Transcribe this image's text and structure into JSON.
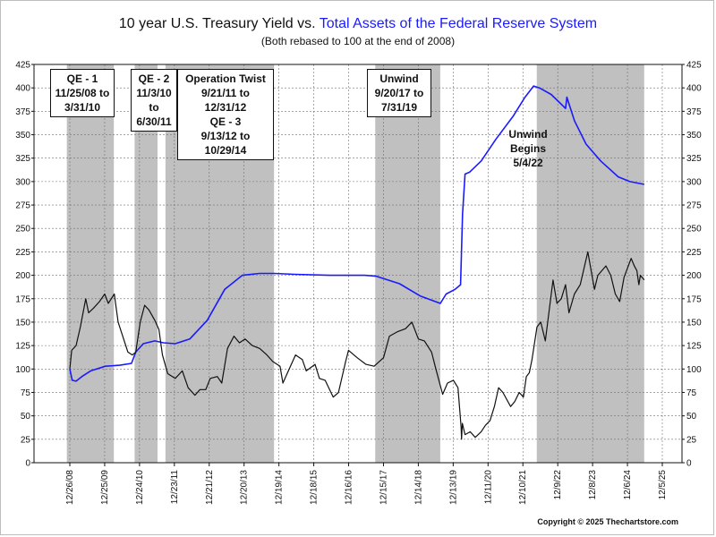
{
  "chart": {
    "title_part1": "10 year U.S. Treasury Yield vs. ",
    "title_part2": "Total Assets of the Federal Reserve System",
    "subtitle": "(Both rebased to 100 at the end of 2008)",
    "copyright": "Copyright © 2025 Thechartstore.com"
  },
  "annotations": {
    "qe1": [
      "QE - 1",
      "11/25/08 to",
      "3/31/10"
    ],
    "qe2": [
      "QE - 2",
      "11/3/10 to",
      "6/30/11"
    ],
    "twist": [
      "Operation Twist",
      "9/21/11 to",
      "12/31/12",
      "QE - 3",
      "9/13/12 to",
      "10/29/14"
    ],
    "unwind1": [
      "Unwind",
      "9/20/17 to",
      "7/31/19"
    ],
    "unwind2": [
      "Unwind",
      "Begins",
      "5/4/22"
    ]
  },
  "chart_data": {
    "type": "line",
    "x_tick_labels": [
      "12/26/08",
      "12/25/09",
      "12/24/10",
      "12/23/11",
      "12/21/12",
      "12/20/13",
      "12/19/14",
      "12/18/15",
      "12/16/16",
      "12/15/17",
      "12/14/18",
      "12/13/19",
      "12/11/20",
      "12/10/21",
      "12/9/22",
      "12/8/23",
      "12/6/24",
      "12/5/25"
    ],
    "y_ticks": [
      0,
      25,
      50,
      75,
      100,
      125,
      150,
      175,
      200,
      225,
      250,
      275,
      300,
      325,
      350,
      375,
      400,
      425
    ],
    "ylim": [
      0,
      425
    ],
    "xlim": [
      "2008-12-26",
      "2025-12-05"
    ],
    "grid": true,
    "shaded_periods": [
      [
        "2008-11-25",
        "2010-03-31"
      ],
      [
        "2010-11-03",
        "2011-06-30"
      ],
      [
        "2011-09-21",
        "2014-10-29"
      ],
      [
        "2017-09-20",
        "2019-07-31"
      ],
      [
        "2022-05-04",
        "2025-05-30"
      ]
    ],
    "colors": {
      "treasury": "#111111",
      "fed_assets": "#1a1aff",
      "shade": "#c0c0c0"
    },
    "series": [
      {
        "name": "Total Assets of the Federal Reserve System",
        "x": [
          "2008-12-26",
          "2009-01-20",
          "2009-03-01",
          "2009-05-01",
          "2009-08-01",
          "2010-01-01",
          "2010-06-01",
          "2010-10-01",
          "2010-11-15",
          "2011-02-01",
          "2011-06-01",
          "2011-09-01",
          "2012-01-01",
          "2012-06-01",
          "2012-12-01",
          "2013-06-01",
          "2013-12-01",
          "2014-06-01",
          "2014-10-29",
          "2015-06-01",
          "2016-06-01",
          "2017-06-01",
          "2017-10-01",
          "2018-06-01",
          "2019-01-01",
          "2019-08-01",
          "2019-10-01",
          "2020-01-01",
          "2020-02-28",
          "2020-03-20",
          "2020-04-15",
          "2020-06-01",
          "2020-10-01",
          "2021-03-01",
          "2021-09-01",
          "2022-01-01",
          "2022-04-01",
          "2022-06-01",
          "2022-10-01",
          "2023-01-20",
          "2023-03-01",
          "2023-03-15",
          "2023-06-01",
          "2023-10-01",
          "2024-03-01",
          "2024-09-01",
          "2025-01-01",
          "2025-05-30"
        ],
        "values": [
          100,
          88,
          87,
          92,
          98,
          103,
          104,
          106,
          118,
          127,
          130,
          128,
          127,
          132,
          152,
          185,
          200,
          202,
          202,
          201,
          200,
          200,
          199,
          191,
          178,
          170,
          180,
          185,
          190,
          265,
          308,
          310,
          322,
          345,
          370,
          390,
          402,
          400,
          393,
          382,
          378,
          390,
          365,
          340,
          322,
          305,
          300,
          297
        ]
      },
      {
        "name": "10 year U.S. Treasury Yield",
        "x": [
          "2008-12-26",
          "2009-01-15",
          "2009-03-01",
          "2009-04-15",
          "2009-06-10",
          "2009-07-10",
          "2009-09-01",
          "2009-11-01",
          "2009-12-26",
          "2010-02-01",
          "2010-04-05",
          "2010-05-15",
          "2010-07-01",
          "2010-08-25",
          "2010-10-10",
          "2010-11-15",
          "2011-01-01",
          "2011-02-15",
          "2011-04-01",
          "2011-06-01",
          "2011-07-15",
          "2011-08-20",
          "2011-10-15",
          "2012-01-01",
          "2012-03-15",
          "2012-05-15",
          "2012-07-25",
          "2012-09-15",
          "2012-11-15",
          "2013-01-01",
          "2013-03-15",
          "2013-05-01",
          "2013-06-30",
          "2013-09-05",
          "2013-11-01",
          "2013-12-31",
          "2014-03-15",
          "2014-06-01",
          "2014-08-15",
          "2014-10-15",
          "2014-12-31",
          "2015-01-30",
          "2015-03-15",
          "2015-06-10",
          "2015-08-20",
          "2015-10-01",
          "2015-12-31",
          "2016-02-15",
          "2016-04-15",
          "2016-07-08",
          "2016-09-01",
          "2016-11-15",
          "2016-12-15",
          "2017-03-15",
          "2017-06-15",
          "2017-09-08",
          "2017-12-15",
          "2018-02-15",
          "2018-05-15",
          "2018-08-01",
          "2018-10-08",
          "2018-12-15",
          "2019-02-15",
          "2019-05-01",
          "2019-06-15",
          "2019-08-25",
          "2019-10-15",
          "2019-12-15",
          "2020-02-01",
          "2020-03-05",
          "2020-03-09",
          "2020-03-18",
          "2020-04-15",
          "2020-06-08",
          "2020-07-30",
          "2020-09-30",
          "2020-11-15",
          "2021-01-01",
          "2021-02-15",
          "2021-03-31",
          "2021-05-15",
          "2021-08-04",
          "2021-09-15",
          "2021-11-01",
          "2021-12-15",
          "2022-01-15",
          "2022-02-15",
          "2022-03-15",
          "2022-05-06",
          "2022-06-15",
          "2022-08-01",
          "2022-10-21",
          "2022-12-01",
          "2023-01-15",
          "2023-03-01",
          "2023-04-05",
          "2023-06-01",
          "2023-08-01",
          "2023-10-19",
          "2023-12-27",
          "2024-02-01",
          "2024-04-25",
          "2024-06-15",
          "2024-08-01",
          "2024-09-16",
          "2024-11-01",
          "2025-01-14",
          "2025-02-15",
          "2025-03-15",
          "2025-04-04",
          "2025-04-20",
          "2025-05-30"
        ],
        "values": [
          100,
          120,
          125,
          145,
          175,
          160,
          165,
          172,
          180,
          170,
          180,
          150,
          135,
          118,
          115,
          118,
          150,
          168,
          163,
          152,
          142,
          115,
          95,
          90,
          98,
          80,
          72,
          78,
          78,
          90,
          92,
          85,
          122,
          135,
          128,
          132,
          125,
          122,
          115,
          108,
          103,
          85,
          95,
          115,
          110,
          98,
          105,
          90,
          88,
          70,
          75,
          108,
          120,
          112,
          105,
          103,
          112,
          135,
          140,
          143,
          150,
          132,
          130,
          118,
          100,
          73,
          85,
          88,
          80,
          38,
          25,
          42,
          30,
          33,
          27,
          33,
          40,
          45,
          60,
          80,
          75,
          60,
          65,
          75,
          70,
          92,
          96,
          110,
          145,
          150,
          130,
          195,
          170,
          175,
          190,
          160,
          180,
          190,
          225,
          185,
          200,
          210,
          200,
          180,
          172,
          198,
          218,
          210,
          205,
          190,
          200,
          195
        ]
      }
    ]
  }
}
